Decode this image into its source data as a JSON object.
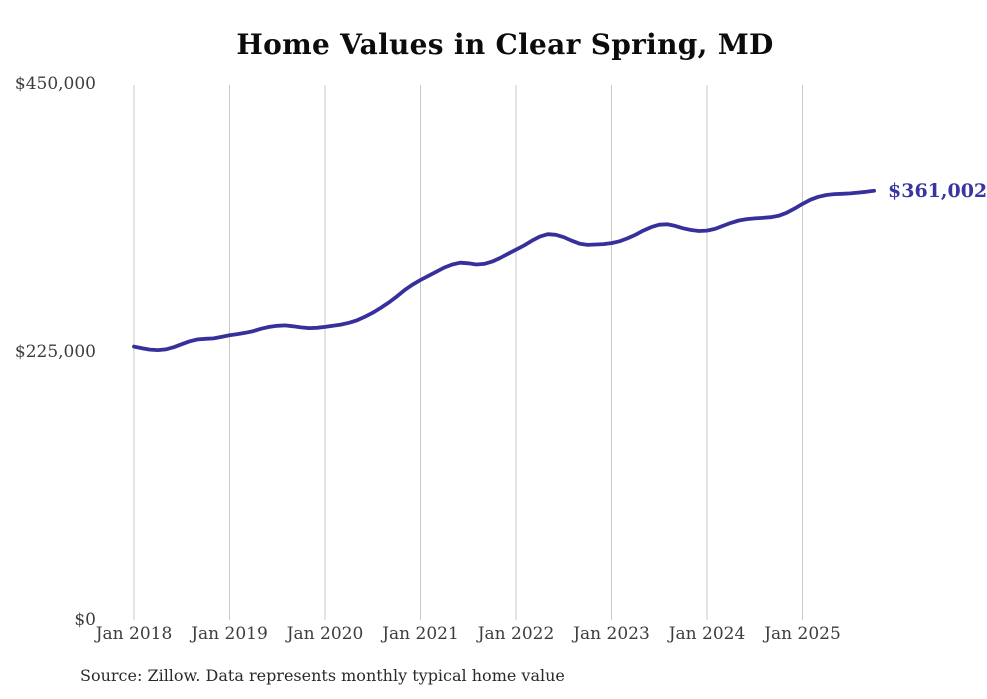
{
  "colors": {
    "line": "#37309c",
    "grid": "#c9c9c9",
    "title": "#0c0c0c",
    "axis_text": "#3d3d3d",
    "end_label": "#3b34a3",
    "source_text": "#2a2a2a",
    "background": "#ffffff"
  },
  "chart_data": {
    "type": "line",
    "title": "Home Values in Clear Spring, MD",
    "source": "Source: Zillow. Data represents monthly typical home value",
    "end_value_label": "$361,002",
    "latest_value": 361002,
    "unit": "USD",
    "xlabel": "",
    "ylabel": "",
    "ylim": [
      0,
      450000
    ],
    "grid": "vertical-only",
    "legend": "none",
    "y_tick_labels": [
      "$450,000",
      "$225,000",
      "$0"
    ],
    "y_tick_values": [
      450000,
      225000,
      0
    ],
    "x_tick_labels": [
      "Jan 2018",
      "Jan 2019",
      "Jan 2020",
      "Jan 2021",
      "Jan 2022",
      "Jan 2023",
      "Jan 2024",
      "Jan 2025"
    ],
    "x_start_month": "Jan 2018",
    "x_end_month": "Oct 2025",
    "months_per_point": 1,
    "series": [
      {
        "name": "Monthly typical home value",
        "values": [
          230000,
          228600,
          227400,
          227000,
          227600,
          229500,
          232000,
          234400,
          236000,
          236500,
          236900,
          238100,
          239500,
          240500,
          241600,
          243000,
          245000,
          246500,
          247500,
          247800,
          247000,
          246100,
          245500,
          245800,
          246500,
          247500,
          248500,
          250000,
          252000,
          255000,
          258500,
          262500,
          267000,
          272000,
          277500,
          282000,
          286000,
          289500,
          293000,
          296500,
          299000,
          300500,
          300000,
          299000,
          299500,
          301500,
          304500,
          308000,
          311500,
          315000,
          319000,
          322500,
          324500,
          324000,
          322000,
          319000,
          316500,
          315500,
          315800,
          316200,
          317000,
          318500,
          321000,
          324000,
          327500,
          330500,
          332500,
          332800,
          331500,
          329500,
          328000,
          327200,
          327500,
          329000,
          331500,
          334000,
          336000,
          337200,
          337800,
          338200,
          338800,
          340000,
          342500,
          346000,
          350000,
          353500,
          356000,
          357500,
          358200,
          358500,
          358800,
          359500,
          360200,
          361002
        ]
      }
    ]
  }
}
